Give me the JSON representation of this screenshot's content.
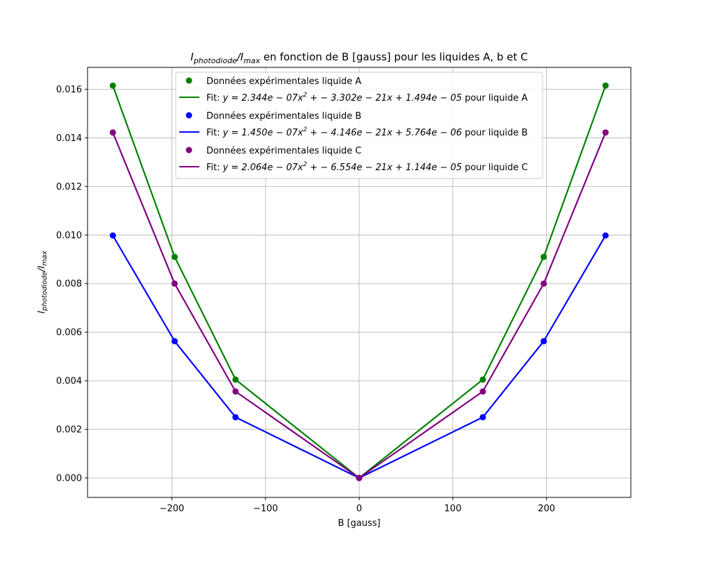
{
  "chart_data": {
    "type": "line",
    "title": {
      "i_var": "I",
      "photodiode_sub": "photodiode",
      "slash": "/",
      "max_sub": "max",
      "text": " en fonction de B [gauss] pour les liquides A, b et C"
    },
    "xlabel": "B [gauss]",
    "ylabel": {
      "i_var": "I",
      "photodiode_sub": "photodiode",
      "slash": "/",
      "max_sub": "max"
    },
    "xlim": [
      -290,
      290
    ],
    "ylim": [
      -0.0008,
      0.0169
    ],
    "xticks": [
      {
        "value": -200,
        "label": "−200"
      },
      {
        "value": -100,
        "label": "−100"
      },
      {
        "value": 0,
        "label": "0"
      },
      {
        "value": 100,
        "label": "100"
      },
      {
        "value": 200,
        "label": "200"
      }
    ],
    "yticks": [
      {
        "value": 0.0,
        "label": "0.000"
      },
      {
        "value": 0.002,
        "label": "0.002"
      },
      {
        "value": 0.004,
        "label": "0.004"
      },
      {
        "value": 0.006,
        "label": "0.006"
      },
      {
        "value": 0.008,
        "label": "0.008"
      },
      {
        "value": 0.01,
        "label": "0.010"
      },
      {
        "value": 0.012,
        "label": "0.012"
      },
      {
        "value": 0.014,
        "label": "0.014"
      },
      {
        "value": 0.016,
        "label": "0.016"
      }
    ],
    "grid": true,
    "legend_position": "upper-center",
    "x": [
      -263,
      -197,
      -132,
      0,
      132,
      197,
      263
    ],
    "series": [
      {
        "id": "A",
        "color": "#008000",
        "values": [
          0.01615,
          0.0091,
          0.00405,
          0.0,
          0.00405,
          0.0091,
          0.01615
        ],
        "marker_label": "Données expérimentales liquide A",
        "fit_label": {
          "prefix": "Fit: ",
          "eq_start": "y = 2.344e − 07x",
          "sup": "2",
          "eq_end": " + − 3.302e − 21x + 1.494e − 05",
          "suffix": " pour liquide A"
        }
      },
      {
        "id": "B",
        "color": "#0000ff",
        "values": [
          0.00998,
          0.00563,
          0.0025,
          0.0,
          0.0025,
          0.00563,
          0.00998
        ],
        "marker_label": "Données expérimentales liquide B",
        "fit_label": {
          "prefix": "Fit: ",
          "eq_start": "y = 1.450e − 07x",
          "sup": "2",
          "eq_end": " + − 4.146e − 21x + 5.764e − 06",
          "suffix": " pour liquide B"
        }
      },
      {
        "id": "C",
        "color": "#800080",
        "values": [
          0.01422,
          0.008,
          0.00356,
          0.0,
          0.00356,
          0.008,
          0.01422
        ],
        "marker_label": "Données expérimentales liquide C",
        "fit_label": {
          "prefix": "Fit: ",
          "eq_start": "y = 2.064e − 07x",
          "sup": "2",
          "eq_end": " + − 6.554e − 21x + 1.144e − 05",
          "suffix": " pour liquide C"
        }
      }
    ]
  }
}
